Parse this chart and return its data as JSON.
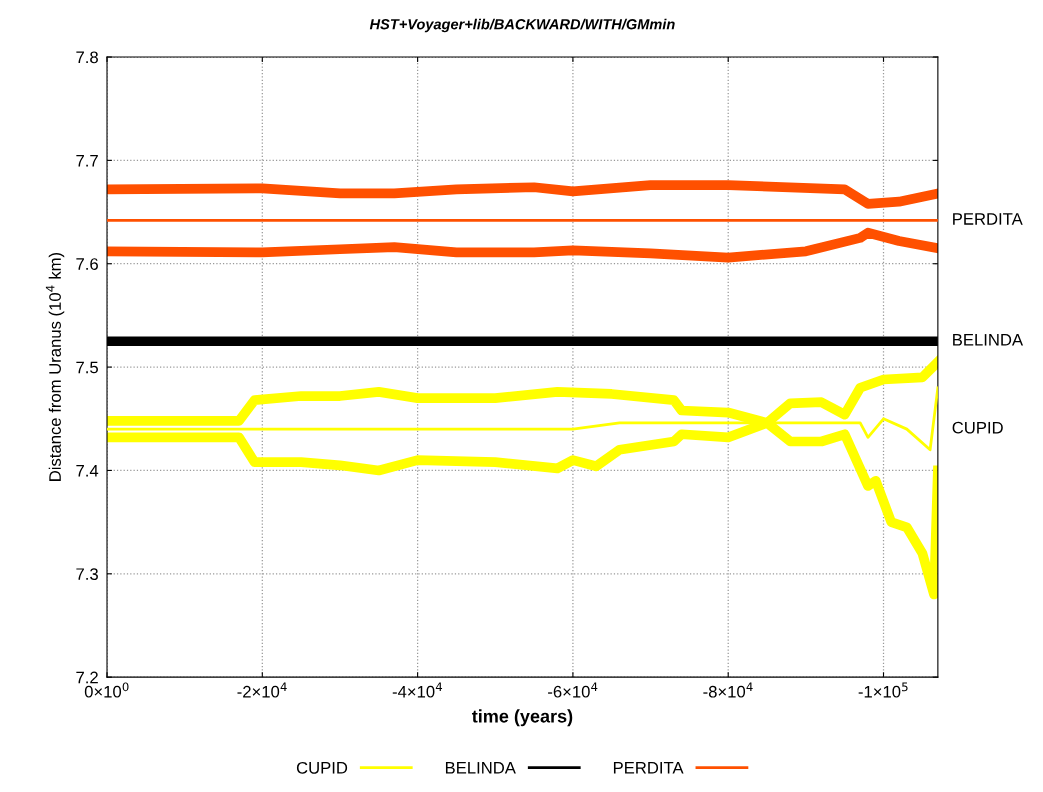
{
  "chart_data": {
    "type": "line",
    "title": "HST+Voyager+lib/BACKWARD/WITH/GMmin",
    "xlabel": "time (years)",
    "ylabel": "Distance from Uranus (10$^{4}$ km)",
    "xlim": [
      0,
      -107000
    ],
    "ylim": [
      7.2,
      7.8
    ],
    "xticks": [
      {
        "value": 0,
        "label": "0×10$^{0}$"
      },
      {
        "value": -20000,
        "label": "-2×10$^{4}$"
      },
      {
        "value": -40000,
        "label": "-4×10$^{4}$"
      },
      {
        "value": -60000,
        "label": "-6×10$^{4}$"
      },
      {
        "value": -80000,
        "label": "-8×10$^{4}$"
      },
      {
        "value": -100000,
        "label": "-1×10$^{5}$"
      }
    ],
    "yticks": [
      7.2,
      7.3,
      7.4,
      7.5,
      7.6,
      7.7,
      7.8
    ],
    "grid": true,
    "legend": "bottom",
    "line_style": "solid",
    "marker": "none",
    "series": [
      {
        "name": "CUPID",
        "color": "#ffff00",
        "x": [
          0,
          -18000,
          -60000,
          -66000,
          -97000,
          -98000,
          -100000,
          -103000,
          -106000,
          -107000
        ],
        "values": [
          7.44,
          7.44,
          7.44,
          7.446,
          7.446,
          7.432,
          7.45,
          7.44,
          7.42,
          7.48
        ]
      },
      {
        "color": "#ffff00",
        "x": [
          0,
          -17000,
          -19000,
          -25000,
          -30000,
          -35000,
          -40000,
          -50000,
          -58000,
          -65000,
          -73000,
          -74000,
          -80000,
          -85000,
          -88000,
          -92000,
          -95000,
          -97000,
          -100000,
          -105000,
          -107000
        ],
        "values": [
          7.448,
          7.448,
          7.468,
          7.472,
          7.472,
          7.476,
          7.47,
          7.47,
          7.476,
          7.474,
          7.468,
          7.458,
          7.456,
          7.446,
          7.465,
          7.466,
          7.454,
          7.48,
          7.488,
          7.49,
          7.505
        ]
      },
      {
        "color": "#ffff00",
        "x": [
          0,
          -17000,
          -19000,
          -25000,
          -30000,
          -35000,
          -40000,
          -50000,
          -58000,
          -60000,
          -63000,
          -66000,
          -73000,
          -74000,
          -80000,
          -85000,
          -88000,
          -92000,
          -95000,
          -98000,
          -99000,
          -101000,
          -103000,
          -105000,
          -106500,
          -107000
        ],
        "values": [
          7.432,
          7.432,
          7.408,
          7.408,
          7.405,
          7.4,
          7.41,
          7.408,
          7.402,
          7.41,
          7.404,
          7.42,
          7.428,
          7.435,
          7.432,
          7.446,
          7.428,
          7.428,
          7.435,
          7.385,
          7.39,
          7.35,
          7.345,
          7.32,
          7.28,
          7.4
        ]
      },
      {
        "name": "BELINDA",
        "color": "#000000",
        "x": [
          0,
          -107000
        ],
        "values": [
          7.525,
          7.525
        ]
      },
      {
        "name": "PERDITA",
        "color": "#ff5000",
        "x": [
          0,
          -107000
        ],
        "values": [
          7.642,
          7.642
        ]
      },
      {
        "color": "#ff5000",
        "x": [
          0,
          -20000,
          -30000,
          -37000,
          -45000,
          -55000,
          -60000,
          -70000,
          -80000,
          -95000,
          -98000,
          -102000,
          -107000
        ],
        "values": [
          7.672,
          7.673,
          7.668,
          7.668,
          7.672,
          7.674,
          7.67,
          7.676,
          7.676,
          7.672,
          7.658,
          7.66,
          7.668
        ]
      },
      {
        "color": "#ff5000",
        "x": [
          0,
          -20000,
          -30000,
          -37000,
          -45000,
          -55000,
          -60000,
          -70000,
          -80000,
          -90000,
          -97000,
          -98000,
          -102000,
          -107000
        ],
        "values": [
          7.612,
          7.611,
          7.614,
          7.616,
          7.611,
          7.611,
          7.613,
          7.61,
          7.606,
          7.612,
          7.625,
          7.63,
          7.622,
          7.615
        ]
      }
    ],
    "annotations": [
      "PERDITA",
      "BELINDA",
      "CUPID"
    ]
  }
}
